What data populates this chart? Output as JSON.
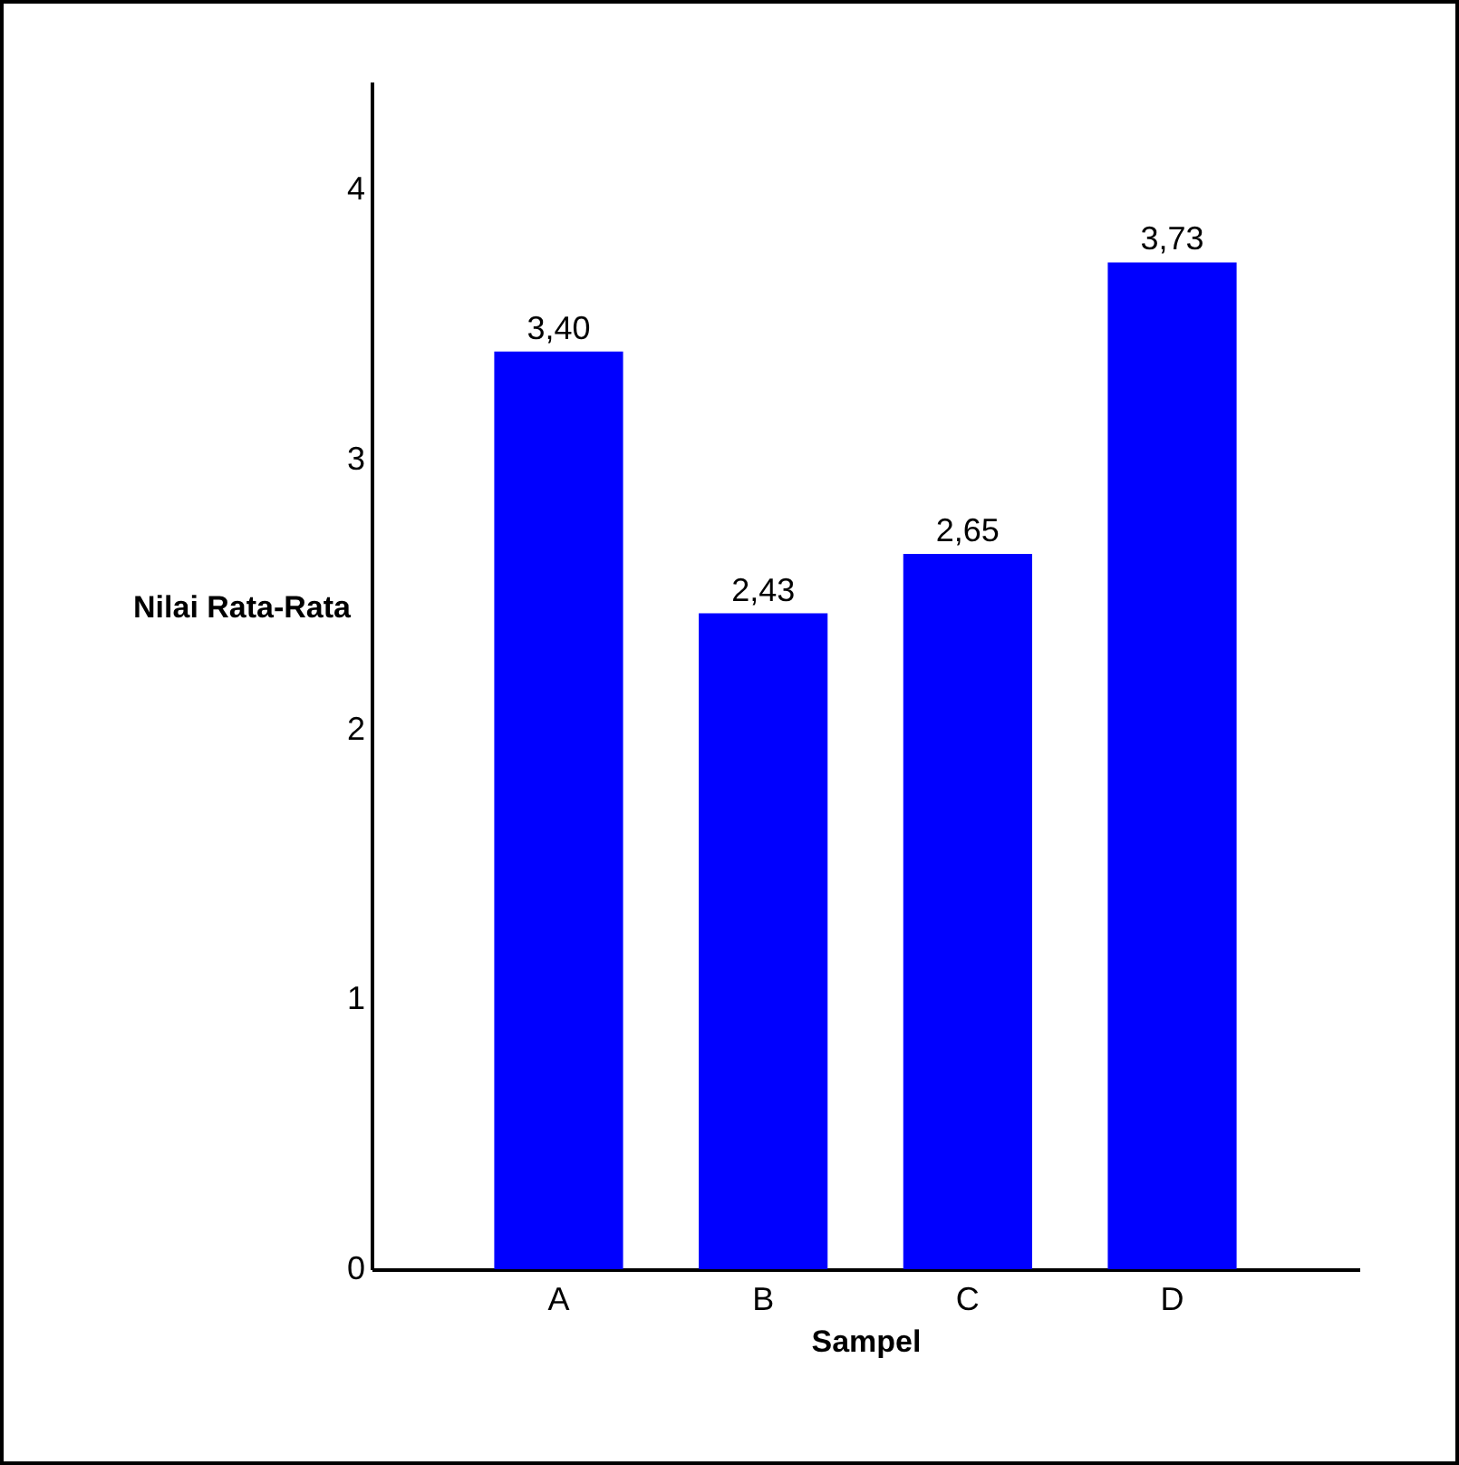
{
  "chart_data": {
    "type": "bar",
    "xlabel": "Sampel",
    "ylabel": "Nilai Rata-Rata",
    "categories": [
      "A",
      "B",
      "C",
      "D"
    ],
    "values": [
      3.4,
      2.43,
      2.65,
      3.73
    ],
    "value_labels": [
      "3,40",
      "2,43",
      "2,65",
      "3,73"
    ],
    "color": "#0000ff",
    "ylim": [
      0,
      4.4
    ],
    "yticks": [
      0,
      1,
      2,
      3,
      4
    ],
    "grid": false
  }
}
